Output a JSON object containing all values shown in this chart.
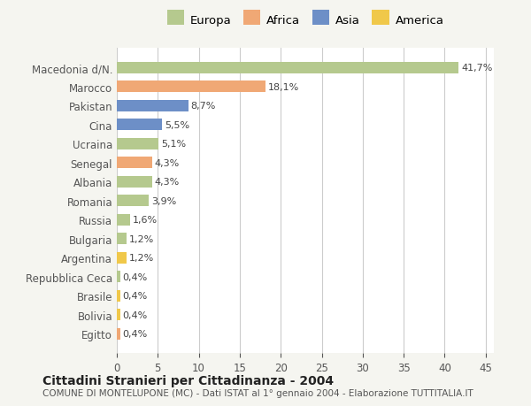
{
  "categories": [
    "Macedonia d/N.",
    "Marocco",
    "Pakistan",
    "Cina",
    "Ucraina",
    "Senegal",
    "Albania",
    "Romania",
    "Russia",
    "Bulgaria",
    "Argentina",
    "Repubblica Ceca",
    "Brasile",
    "Bolivia",
    "Egitto"
  ],
  "values": [
    41.7,
    18.1,
    8.7,
    5.5,
    5.1,
    4.3,
    4.3,
    3.9,
    1.6,
    1.2,
    1.2,
    0.4,
    0.4,
    0.4,
    0.4
  ],
  "labels": [
    "41,7%",
    "18,1%",
    "8,7%",
    "5,5%",
    "5,1%",
    "4,3%",
    "4,3%",
    "3,9%",
    "1,6%",
    "1,2%",
    "1,2%",
    "0,4%",
    "0,4%",
    "0,4%",
    "0,4%"
  ],
  "colors": [
    "#b5c98e",
    "#f0a875",
    "#6d8fc7",
    "#6d8fc7",
    "#b5c98e",
    "#f0a875",
    "#b5c98e",
    "#b5c98e",
    "#b5c98e",
    "#b5c98e",
    "#f0c84a",
    "#b5c98e",
    "#f0c84a",
    "#f0c84a",
    "#f0a875"
  ],
  "legend_labels": [
    "Europa",
    "Africa",
    "Asia",
    "America"
  ],
  "legend_colors": [
    "#b5c98e",
    "#f0a875",
    "#6d8fc7",
    "#f0c84a"
  ],
  "xlim": [
    0,
    46
  ],
  "xticks": [
    0,
    5,
    10,
    15,
    20,
    25,
    30,
    35,
    40,
    45
  ],
  "title": "Cittadini Stranieri per Cittadinanza - 2004",
  "subtitle": "COMUNE DI MONTELUPONE (MC) - Dati ISTAT al 1° gennaio 2004 - Elaborazione TUTTITALIA.IT",
  "bg_color": "#f5f5f0",
  "plot_bg_color": "#ffffff",
  "grid_color": "#cccccc",
  "label_color": "#555555",
  "bar_label_color": "#444444"
}
